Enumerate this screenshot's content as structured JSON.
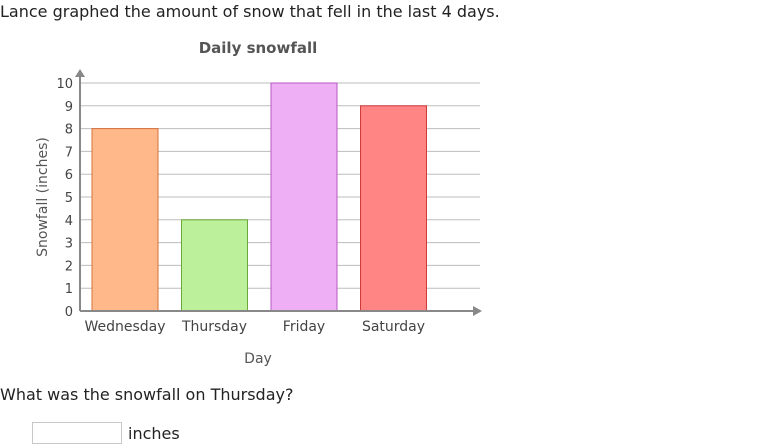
{
  "prompt": "Lance graphed the amount of snow that fell in the last 4 days.",
  "question": "What was the snowfall on Thursday?",
  "answer": {
    "value": "",
    "unit": "inches"
  },
  "chart_data": {
    "type": "bar",
    "title": "Daily snowfall",
    "xlabel": "Day",
    "ylabel": "Snowfall (inches)",
    "categories": [
      "Wednesday",
      "Thursday",
      "Friday",
      "Saturday"
    ],
    "values": [
      8,
      4,
      10,
      9
    ],
    "colors": [
      "#ffb88a",
      "#bdf09a",
      "#eeaff5",
      "#ff8585"
    ],
    "stroke_colors": [
      "#d8703a",
      "#6aa83a",
      "#b75ac5",
      "#d03a3a"
    ],
    "ylim": [
      0,
      10
    ],
    "yticks": [
      0,
      1,
      2,
      3,
      4,
      5,
      6,
      7,
      8,
      9,
      10
    ],
    "grid": true,
    "legend": "none"
  }
}
